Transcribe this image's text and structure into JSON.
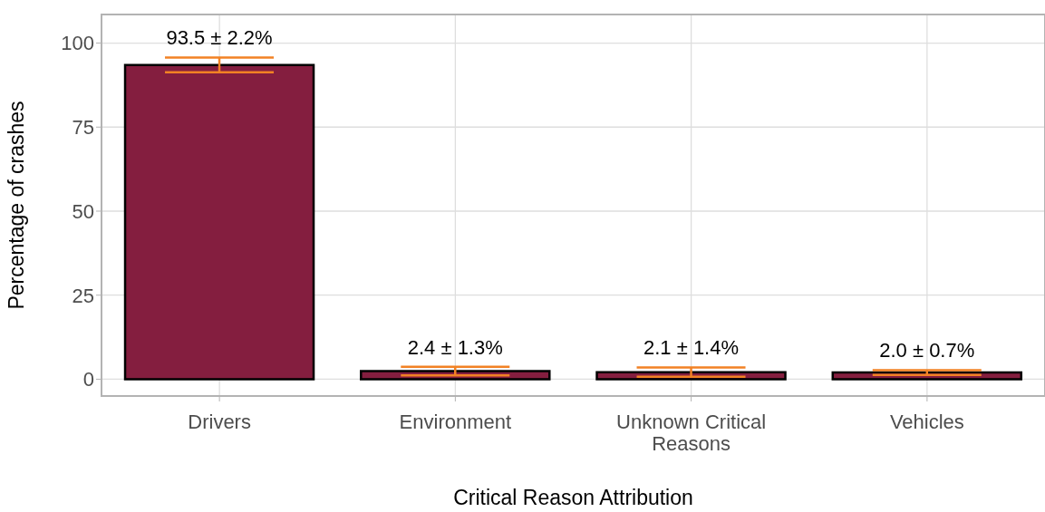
{
  "chart_data": {
    "type": "bar",
    "xlabel": "Critical Reason Attribution",
    "ylabel": "Percentage of crashes",
    "categories": [
      "Drivers",
      "Environment",
      "Unknown Critical Reasons",
      "Vehicles"
    ],
    "values": [
      93.5,
      2.4,
      2.1,
      2.0
    ],
    "errors": [
      2.2,
      1.3,
      1.4,
      0.7
    ],
    "value_labels": [
      "93.5 ± 2.2%",
      "2.4 ± 1.3%",
      "2.1 ± 1.4%",
      "2.0 ± 0.7%"
    ],
    "color": "#841e3f",
    "ylim": [
      -5,
      108.5
    ],
    "yticks": [
      0,
      25,
      50,
      75,
      100
    ],
    "grid": true
  }
}
